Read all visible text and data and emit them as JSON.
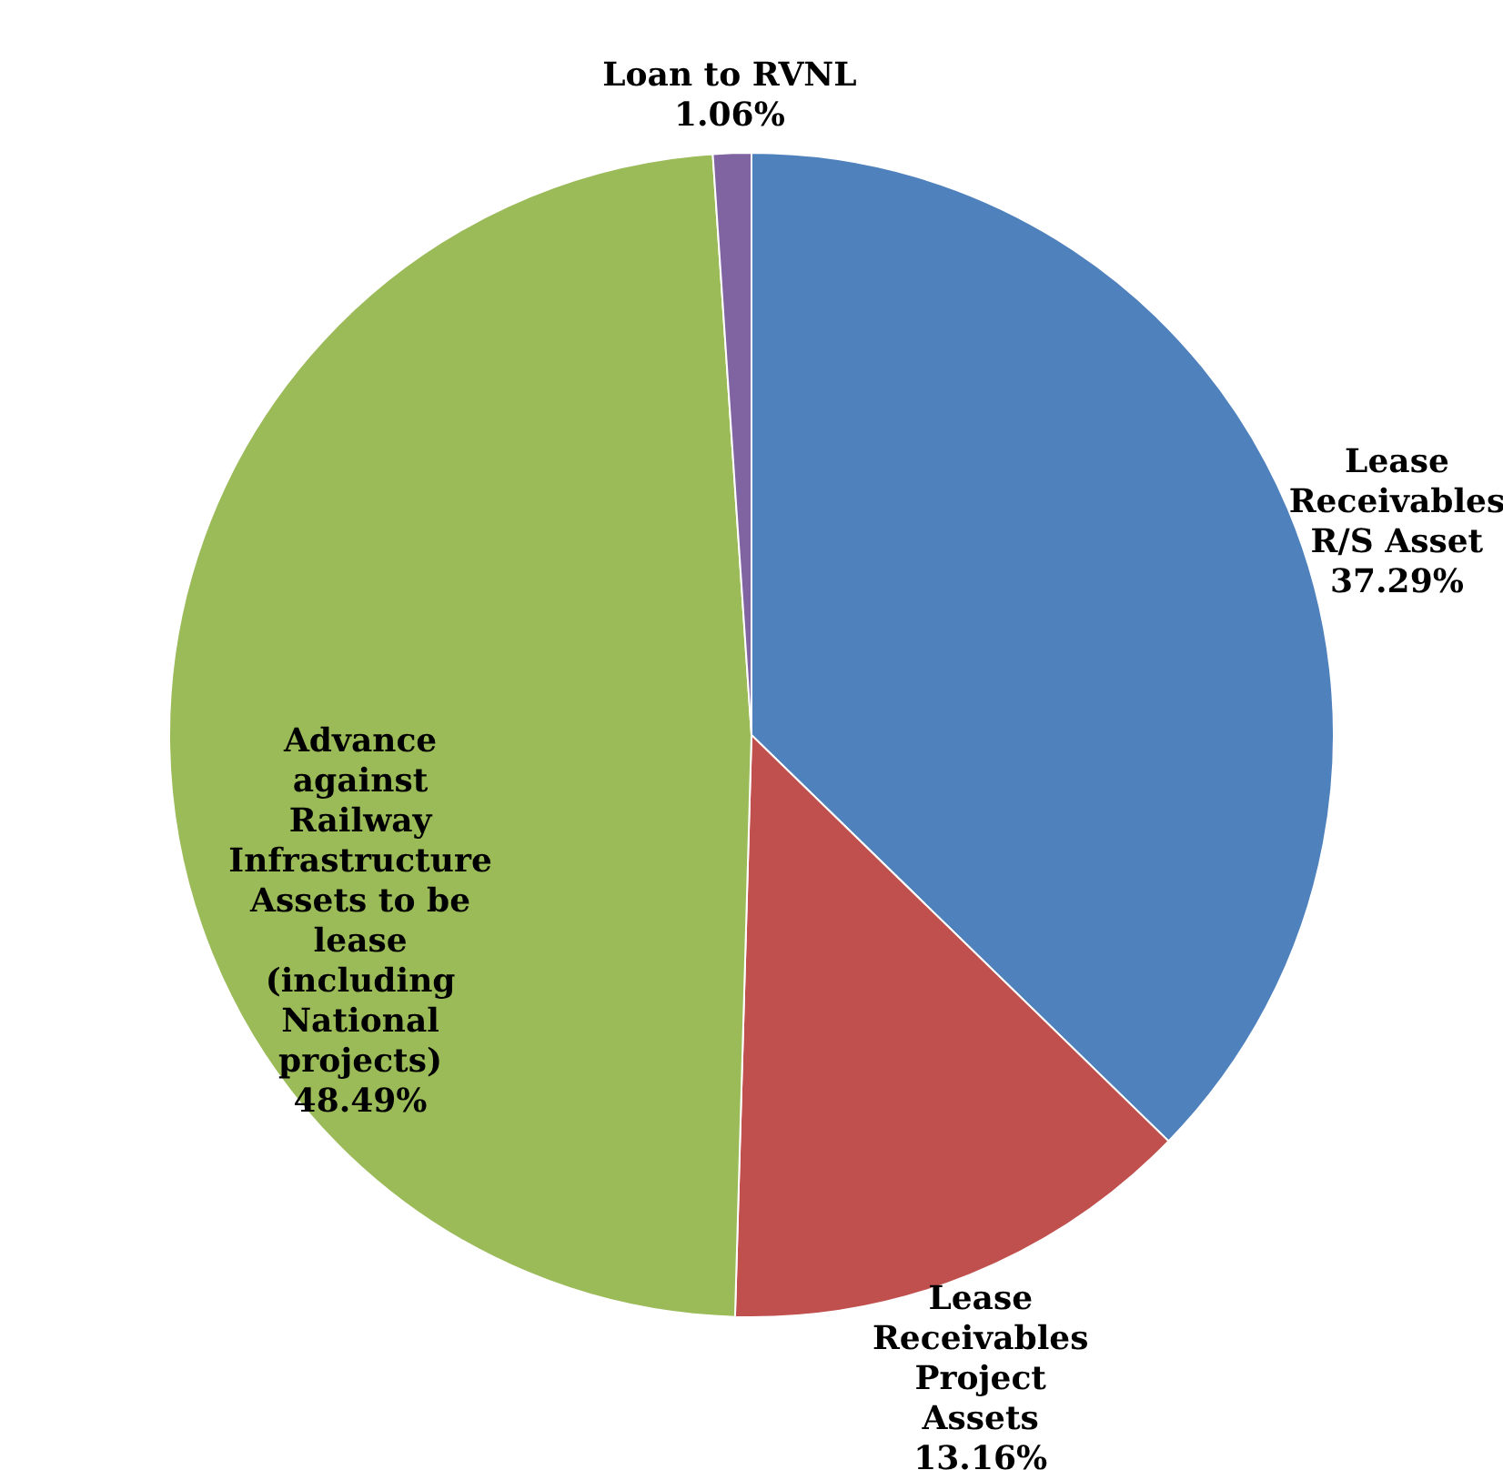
{
  "chart_data": {
    "type": "pie",
    "categories": [
      "Lease Receivables R/S Asset",
      "Lease Receivables Project Assets",
      "Advance against Railway Infrastructure Assets to be lease (including National projects)",
      "Loan to RVNL"
    ],
    "values": [
      37.29,
      13.16,
      48.49,
      1.06
    ],
    "colors": [
      "#4f81bd",
      "#c0504d",
      "#9bbb59",
      "#8064a2"
    ],
    "value_labels": [
      "37.29%",
      "13.16%",
      "48.49%",
      "1.06%"
    ]
  }
}
